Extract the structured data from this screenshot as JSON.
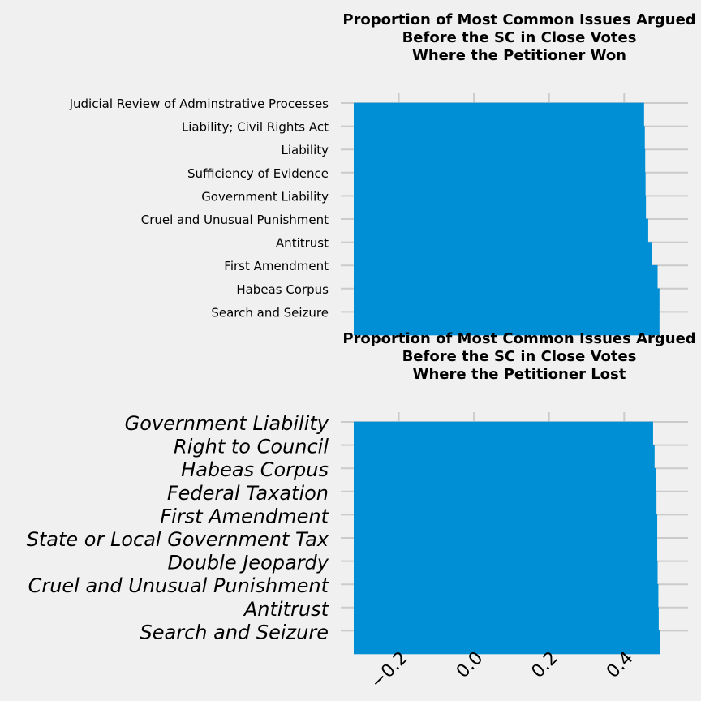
{
  "chart_data": [
    {
      "type": "bar",
      "orientation": "horizontal",
      "title": "Proportion of Most Common Issues Argued\nBefore the SC in Close Votes\nWhere the Petitioner Won",
      "categories": [
        "Judicial Review of Adminstrative Processes",
        "Liability; Civil Rights Act",
        "Liability",
        "Sufficiency of Evidence",
        "Government Liability",
        "Cruel and Unusual Punishment",
        "Antitrust",
        "First Amendment",
        "Habeas Corpus",
        "Search and Seizure"
      ],
      "values": [
        0.453,
        0.455,
        0.456,
        0.457,
        0.458,
        0.464,
        0.473,
        0.489,
        0.494,
        0.494
      ],
      "xlim": [
        -0.32,
        0.57
      ],
      "xticks": [
        -0.2,
        0.0,
        0.2,
        0.4
      ],
      "show_xtick_labels": false,
      "grid": true,
      "bar_color": "#008fd5",
      "background": "#f0f0f0"
    },
    {
      "type": "bar",
      "orientation": "horizontal",
      "title": "Proportion of Most Common Issues Argued\nBefore the SC in Close Votes\nWhere the Petitioner Lost",
      "categories": [
        "Government Liability",
        "Right to Council",
        "Habeas Corpus",
        "Federal Taxation",
        "First Amendment",
        "State or Local Government Tax",
        "Double Jeopardy",
        "Cruel and Unusual Punishment",
        "Antitrust",
        "Search and Seizure"
      ],
      "values": [
        0.477,
        0.481,
        0.484,
        0.486,
        0.488,
        0.488,
        0.489,
        0.491,
        0.492,
        0.496
      ],
      "xlim": [
        -0.32,
        0.57
      ],
      "xticks": [
        -0.2,
        0.0,
        0.2,
        0.4
      ],
      "xtick_labels": [
        "−0.2",
        "0.0",
        "0.2",
        "0.4"
      ],
      "show_xtick_labels": true,
      "label_style": "italic",
      "grid": true,
      "bar_color": "#008fd5",
      "background": "#f0f0f0"
    }
  ]
}
